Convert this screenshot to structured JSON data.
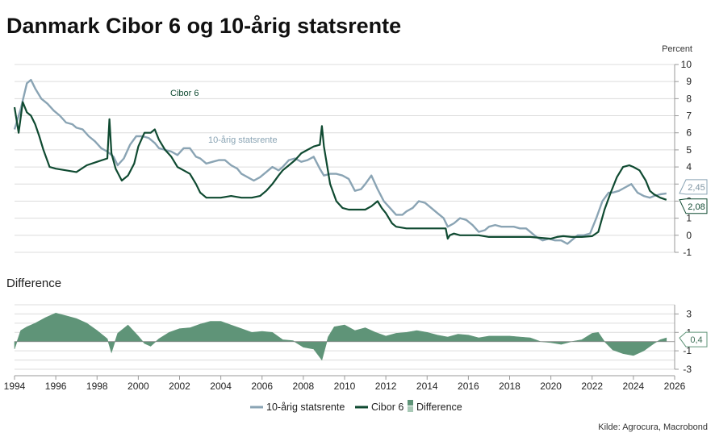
{
  "title": "Danmark Cibor 6 og 10-årig statsrente",
  "source": "Kilde: Agrocura, Macrobond",
  "colors": {
    "cibor": "#0f4a31",
    "bond": "#8aa4b4",
    "diff": "#5f9478",
    "diff_light": "#a8c9b6",
    "grid": "#dcdcdc"
  },
  "chart_data": [
    {
      "type": "line",
      "title": "Danmark Cibor 6 og 10-årig statsrente",
      "ylabel": "Percent",
      "ylim": [
        -1,
        10
      ],
      "yticks": [
        "-1",
        "0",
        "1",
        "2",
        "3",
        "4",
        "5",
        "6",
        "7",
        "8",
        "9",
        "10"
      ],
      "xlim": [
        1994,
        2026
      ],
      "xticks": [
        "1994",
        "1996",
        "1998",
        "2000",
        "2002",
        "2004",
        "2006",
        "2008",
        "2010",
        "2012",
        "2014",
        "2016",
        "2018",
        "2020",
        "2022",
        "2024",
        "2026"
      ],
      "grid": true,
      "legend": "bottom",
      "series": [
        {
          "name": "10-årig statsrente",
          "label": "10-årig statsrente",
          "last_label": "2,45",
          "x": [
            1994.0,
            1994.3,
            1994.6,
            1994.8,
            1995.0,
            1995.3,
            1995.6,
            1995.9,
            1996.2,
            1996.5,
            1996.8,
            1997.0,
            1997.3,
            1997.6,
            1997.9,
            1998.2,
            1998.5,
            1998.8,
            1999.0,
            1999.3,
            1999.6,
            1999.9,
            2000.2,
            2000.5,
            2000.8,
            2001.0,
            2001.3,
            2001.6,
            2001.9,
            2002.2,
            2002.5,
            2002.8,
            2003.0,
            2003.3,
            2003.6,
            2003.9,
            2004.2,
            2004.5,
            2004.8,
            2005.0,
            2005.3,
            2005.6,
            2005.9,
            2006.2,
            2006.5,
            2006.8,
            2007.0,
            2007.3,
            2007.6,
            2007.9,
            2008.2,
            2008.5,
            2008.8,
            2009.0,
            2009.3,
            2009.6,
            2009.9,
            2010.2,
            2010.5,
            2010.8,
            2011.0,
            2011.3,
            2011.6,
            2011.9,
            2012.2,
            2012.5,
            2012.8,
            2013.0,
            2013.3,
            2013.6,
            2013.9,
            2014.2,
            2014.5,
            2014.8,
            2015.0,
            2015.3,
            2015.6,
            2015.9,
            2016.2,
            2016.5,
            2016.8,
            2017.0,
            2017.3,
            2017.6,
            2017.9,
            2018.2,
            2018.5,
            2018.8,
            2019.0,
            2019.3,
            2019.6,
            2019.9,
            2020.2,
            2020.5,
            2020.8,
            2021.0,
            2021.3,
            2021.6,
            2021.9,
            2022.2,
            2022.5,
            2022.8,
            2023.0,
            2023.3,
            2023.6,
            2023.9,
            2024.2,
            2024.5,
            2024.8,
            2025.0,
            2025.3,
            2025.6
          ],
          "values": [
            6.2,
            7.4,
            8.9,
            9.1,
            8.6,
            8.0,
            7.7,
            7.3,
            7.0,
            6.6,
            6.5,
            6.3,
            6.2,
            5.8,
            5.5,
            5.1,
            4.9,
            4.6,
            4.1,
            4.5,
            5.3,
            5.8,
            5.8,
            5.7,
            5.4,
            5.1,
            5.0,
            4.9,
            4.7,
            5.1,
            5.1,
            4.6,
            4.5,
            4.2,
            4.3,
            4.4,
            4.4,
            4.1,
            3.9,
            3.6,
            3.4,
            3.2,
            3.4,
            3.7,
            4.0,
            3.8,
            4.0,
            4.4,
            4.5,
            4.3,
            4.4,
            4.6,
            3.9,
            3.5,
            3.6,
            3.6,
            3.5,
            3.3,
            2.6,
            2.7,
            3.0,
            3.5,
            2.7,
            2.0,
            1.6,
            1.2,
            1.2,
            1.4,
            1.6,
            2.0,
            1.9,
            1.6,
            1.3,
            1.0,
            0.5,
            0.7,
            1.0,
            0.9,
            0.6,
            0.2,
            0.3,
            0.5,
            0.6,
            0.5,
            0.5,
            0.5,
            0.4,
            0.4,
            0.2,
            -0.1,
            -0.3,
            -0.2,
            -0.3,
            -0.3,
            -0.5,
            -0.3,
            0.0,
            0.0,
            0.1,
            1.0,
            2.0,
            2.5,
            2.5,
            2.6,
            2.8,
            3.0,
            2.5,
            2.3,
            2.2,
            2.3,
            2.4,
            2.45
          ]
        },
        {
          "name": "Cibor 6",
          "label": "Cibor 6",
          "last_label": "2,08",
          "x": [
            1994.0,
            1994.2,
            1994.4,
            1994.6,
            1994.8,
            1995.0,
            1995.2,
            1995.4,
            1995.7,
            1996.0,
            1996.5,
            1997.0,
            1997.5,
            1998.0,
            1998.5,
            1998.6,
            1998.7,
            1998.9,
            1999.2,
            1999.5,
            1999.8,
            2000.0,
            2000.3,
            2000.6,
            2000.8,
            2001.0,
            2001.3,
            2001.6,
            2001.9,
            2002.2,
            2002.5,
            2002.8,
            2003.0,
            2003.3,
            2003.6,
            2004.0,
            2004.5,
            2005.0,
            2005.5,
            2005.9,
            2006.2,
            2006.5,
            2006.8,
            2007.0,
            2007.3,
            2007.6,
            2007.9,
            2008.2,
            2008.5,
            2008.8,
            2008.9,
            2009.0,
            2009.3,
            2009.6,
            2009.9,
            2010.2,
            2010.5,
            2010.8,
            2011.0,
            2011.3,
            2011.6,
            2011.8,
            2012.0,
            2012.3,
            2012.5,
            2013.0,
            2013.5,
            2014.0,
            2014.5,
            2014.9,
            2015.0,
            2015.1,
            2015.3,
            2015.6,
            2016.0,
            2016.5,
            2017.0,
            2017.5,
            2018.0,
            2018.5,
            2019.0,
            2019.5,
            2020.0,
            2020.3,
            2020.6,
            2021.0,
            2021.5,
            2022.0,
            2022.3,
            2022.6,
            2022.9,
            2023.2,
            2023.5,
            2023.8,
            2024.0,
            2024.3,
            2024.6,
            2024.8,
            2025.0,
            2025.3,
            2025.6
          ],
          "values": [
            7.5,
            6.0,
            7.8,
            7.2,
            7.0,
            6.5,
            5.8,
            5.0,
            4.0,
            3.9,
            3.8,
            3.7,
            4.1,
            4.3,
            4.5,
            6.8,
            4.8,
            3.9,
            3.2,
            3.5,
            4.2,
            5.2,
            6.0,
            6.0,
            6.2,
            5.6,
            5.0,
            4.6,
            4.0,
            3.8,
            3.6,
            3.0,
            2.5,
            2.2,
            2.2,
            2.2,
            2.3,
            2.2,
            2.2,
            2.3,
            2.6,
            3.0,
            3.5,
            3.8,
            4.1,
            4.4,
            4.8,
            5.0,
            5.2,
            5.3,
            6.4,
            5.2,
            3.0,
            2.0,
            1.6,
            1.5,
            1.5,
            1.5,
            1.5,
            1.7,
            2.0,
            1.6,
            1.3,
            0.7,
            0.5,
            0.4,
            0.4,
            0.4,
            0.4,
            0.4,
            -0.2,
            0.0,
            0.1,
            0.0,
            0.0,
            0.0,
            -0.1,
            -0.1,
            -0.1,
            -0.1,
            -0.1,
            -0.15,
            -0.2,
            -0.1,
            -0.05,
            -0.1,
            -0.1,
            -0.05,
            0.2,
            1.5,
            2.5,
            3.4,
            4.0,
            4.1,
            4.0,
            3.8,
            3.2,
            2.6,
            2.4,
            2.2,
            2.08
          ]
        }
      ]
    },
    {
      "type": "area",
      "title": "Difference",
      "ylim": [
        -3,
        4
      ],
      "yticks": [
        "-3",
        "-1",
        "1",
        "3"
      ],
      "xlim": [
        1994,
        2026
      ],
      "grid": true,
      "series": [
        {
          "name": "Difference",
          "label": "Difference",
          "last_label": "0,4",
          "x": [
            1994.0,
            1994.3,
            1994.6,
            1995.0,
            1995.5,
            1996.0,
            1996.5,
            1997.0,
            1997.5,
            1998.0,
            1998.5,
            1998.7,
            1999.0,
            1999.5,
            2000.0,
            2000.3,
            2000.6,
            2001.0,
            2001.5,
            2002.0,
            2002.5,
            2003.0,
            2003.5,
            2004.0,
            2004.5,
            2005.0,
            2005.5,
            2006.0,
            2006.5,
            2007.0,
            2007.5,
            2008.0,
            2008.5,
            2008.9,
            2009.2,
            2009.5,
            2010.0,
            2010.5,
            2011.0,
            2011.5,
            2012.0,
            2012.5,
            2013.0,
            2013.5,
            2014.0,
            2014.5,
            2015.0,
            2015.5,
            2016.0,
            2016.5,
            2017.0,
            2017.5,
            2018.0,
            2018.5,
            2019.0,
            2019.5,
            2020.0,
            2020.5,
            2021.0,
            2021.5,
            2022.0,
            2022.3,
            2022.6,
            2023.0,
            2023.5,
            2024.0,
            2024.5,
            2025.0,
            2025.3,
            2025.6
          ],
          "values": [
            -0.8,
            1.2,
            1.6,
            2.0,
            2.6,
            3.1,
            2.8,
            2.5,
            2.0,
            1.2,
            0.3,
            -1.2,
            0.9,
            1.8,
            0.6,
            -0.2,
            -0.5,
            0.3,
            1.0,
            1.4,
            1.5,
            1.9,
            2.2,
            2.2,
            1.8,
            1.4,
            1.0,
            1.1,
            1.0,
            0.2,
            0.1,
            -0.6,
            -0.8,
            -2.0,
            0.5,
            1.6,
            1.8,
            1.2,
            1.5,
            1.0,
            0.6,
            0.9,
            1.0,
            1.2,
            1.0,
            0.7,
            0.5,
            0.8,
            0.7,
            0.4,
            0.6,
            0.6,
            0.6,
            0.5,
            0.4,
            0.0,
            -0.1,
            -0.3,
            0.0,
            0.2,
            0.9,
            1.0,
            0.0,
            -0.9,
            -1.3,
            -1.5,
            -1.0,
            -0.2,
            0.2,
            0.4
          ]
        }
      ]
    }
  ]
}
